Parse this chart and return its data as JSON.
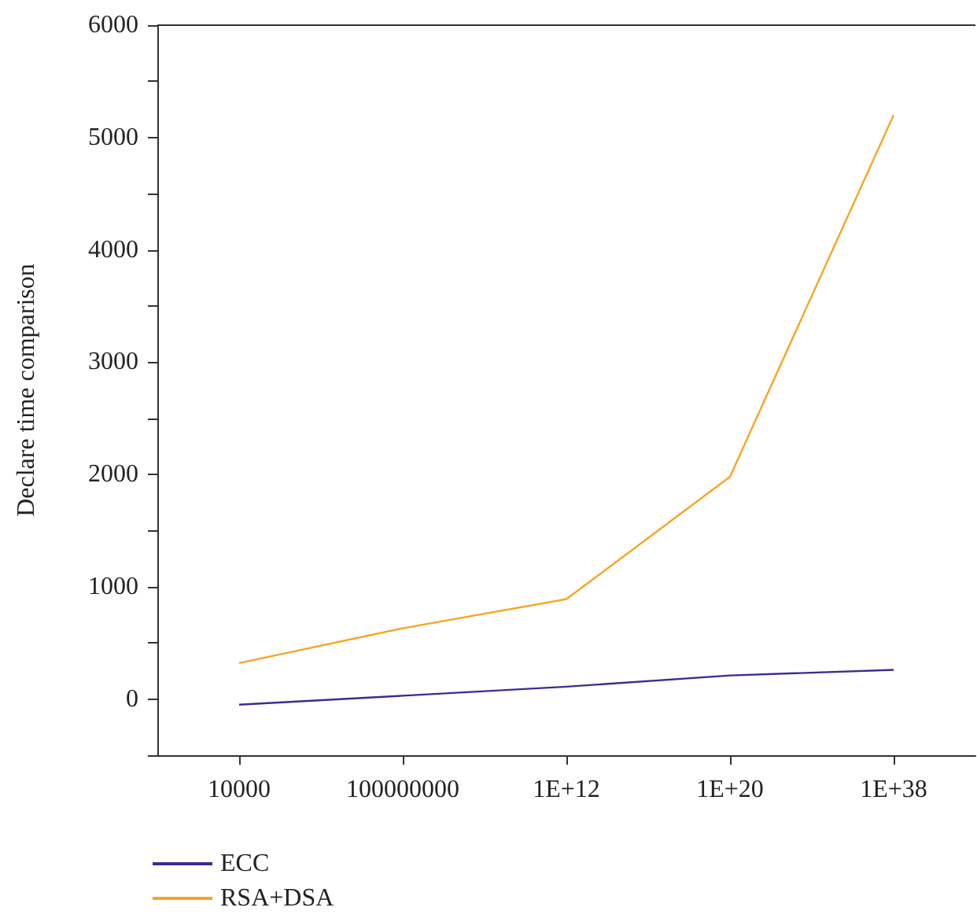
{
  "chart_data": {
    "type": "line",
    "ylabel": "Declare time comparison",
    "categories": [
      "10000",
      "100000000",
      "1E+12",
      "1E+20",
      "1E+38"
    ],
    "series": [
      {
        "name": "ECC",
        "color": "#3b2d8f",
        "values": [
          -50,
          30,
          110,
          210,
          260
        ]
      },
      {
        "name": "RSA+DSA",
        "color": "#f5a623",
        "values": [
          320,
          630,
          890,
          1980,
          5200
        ]
      }
    ],
    "ylim": [
      -500,
      6000
    ],
    "yticks": [
      {
        "value": -500,
        "label": null
      },
      0,
      {
        "value": 500,
        "label": null
      },
      1000,
      {
        "value": 1500,
        "label": null
      },
      2000,
      {
        "value": 2500,
        "label": null
      },
      3000,
      {
        "value": 3500,
        "label": null
      },
      4000,
      {
        "value": 4500,
        "label": null
      },
      5000,
      {
        "value": 5500,
        "label": null
      },
      6000
    ],
    "grid": false,
    "legend": "bottom left",
    "marker": "none",
    "line_style": "solid"
  }
}
